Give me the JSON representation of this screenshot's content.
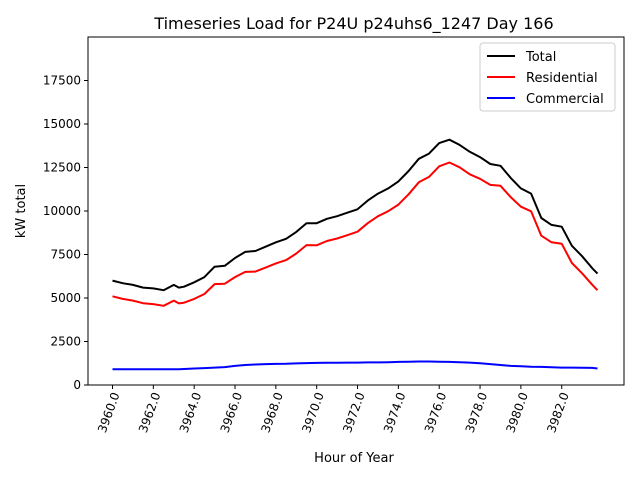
{
  "chart_data": {
    "type": "line",
    "title": "Timeseries Load for P24U p24uhs6_1247  Day 166",
    "xlabel": "Hour of Year",
    "ylabel": "kW total",
    "xlim": [
      3958.8,
      3985.05
    ],
    "ylim": [
      0,
      20000
    ],
    "grid": false,
    "legend_position": "top-right",
    "x_ticks": [
      "3960.0",
      "3962.0",
      "3964.0",
      "3966.0",
      "3968.0",
      "3970.0",
      "3972.0",
      "3974.0",
      "3976.0",
      "3978.0",
      "3980.0",
      "3982.0"
    ],
    "x_tick_values": [
      3960,
      3962,
      3964,
      3966,
      3968,
      3970,
      3972,
      3974,
      3976,
      3978,
      3980,
      3982
    ],
    "y_ticks": [
      "0",
      "2500",
      "5000",
      "7500",
      "10000",
      "12500",
      "15000",
      "17500"
    ],
    "y_tick_values": [
      0,
      2500,
      5000,
      7500,
      10000,
      12500,
      15000,
      17500
    ],
    "x": [
      3960,
      3960.5,
      3961,
      3961.5,
      3962,
      3962.5,
      3963,
      3963.25,
      3963.5,
      3964,
      3964.5,
      3965,
      3965.5,
      3966,
      3966.5,
      3967,
      3967.5,
      3968,
      3968.5,
      3969,
      3969.5,
      3970,
      3970.5,
      3971,
      3971.5,
      3972,
      3972.5,
      3973,
      3973.5,
      3974,
      3974.5,
      3975,
      3975.5,
      3976,
      3976.5,
      3977,
      3977.5,
      3978,
      3978.5,
      3979,
      3979.5,
      3980,
      3980.5,
      3981,
      3981.5,
      3982,
      3982.5,
      3983,
      3983.5,
      3983.75
    ],
    "series": [
      {
        "name": "Total",
        "color": "#000000",
        "values": [
          6000,
          5850,
          5750,
          5600,
          5550,
          5450,
          5750,
          5600,
          5650,
          5900,
          6200,
          6800,
          6850,
          7300,
          7650,
          7700,
          7950,
          8200,
          8400,
          8800,
          9300,
          9300,
          9550,
          9700,
          9900,
          10100,
          10600,
          11000,
          11300,
          11700,
          12300,
          13000,
          13300,
          13900,
          14100,
          13800,
          13400,
          13100,
          12700,
          12600,
          11900,
          11300,
          11000,
          9600,
          9200,
          9100,
          8000,
          7400,
          6700,
          6400
        ]
      },
      {
        "name": "Residential",
        "color": "#ff0000",
        "values": [
          5100,
          4950,
          4850,
          4700,
          4650,
          4550,
          4850,
          4690,
          4730,
          4950,
          5230,
          5800,
          5820,
          6200,
          6500,
          6520,
          6750,
          6990,
          7180,
          7560,
          8040,
          8030,
          8275,
          8420,
          8610,
          8810,
          9300,
          9700,
          9990,
          10370,
          10960,
          11650,
          11960,
          12570,
          12790,
          12510,
          12110,
          11850,
          11500,
          11450,
          10800,
          10250,
          9980,
          8580,
          8200,
          8120,
          7010,
          6420,
          5750,
          5450
        ]
      },
      {
        "name": "Commercial",
        "color": "#0000ff",
        "values": [
          900,
          900,
          900,
          900,
          900,
          900,
          900,
          910,
          920,
          950,
          970,
          1000,
          1030,
          1100,
          1150,
          1180,
          1200,
          1210,
          1220,
          1240,
          1260,
          1270,
          1275,
          1280,
          1290,
          1290,
          1300,
          1300,
          1310,
          1330,
          1340,
          1350,
          1350,
          1340,
          1330,
          1310,
          1290,
          1250,
          1200,
          1150,
          1100,
          1080,
          1050,
          1040,
          1020,
          1000,
          1000,
          990,
          980,
          950
        ]
      }
    ]
  }
}
